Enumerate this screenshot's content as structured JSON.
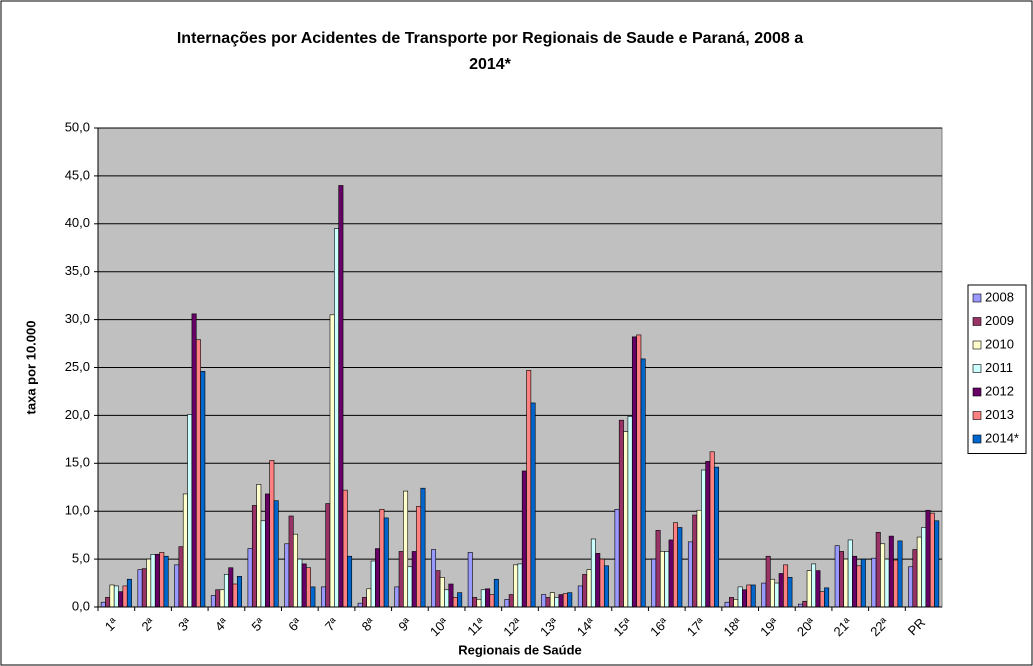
{
  "chart_data": {
    "type": "bar",
    "title": "Internações por Acidentes de Transporte por  Regionais de Saude e Paraná, 2008 a 2014*",
    "xlabel": "Regionais de Saúde",
    "ylabel": "taxa por 10.000",
    "categories": [
      "1ª",
      "2ª",
      "3ª",
      "4ª",
      "5ª",
      "6ª",
      "7ª",
      "8ª",
      "9ª",
      "10ª",
      "11ª",
      "12ª",
      "13ª",
      "14ª",
      "15ª",
      "16ª",
      "17ª",
      "18ª",
      "19ª",
      "20ª",
      "21ª",
      "22ª",
      "PR"
    ],
    "series": [
      {
        "name": "2008",
        "color": "#9999ff",
        "values": [
          0.5,
          3.9,
          4.4,
          1.2,
          6.1,
          6.6,
          2.1,
          0.4,
          2.1,
          6.0,
          5.7,
          0.8,
          1.3,
          2.2,
          10.2,
          5.0,
          6.8,
          0.5,
          2.5,
          0.3,
          6.4,
          5.1,
          4.2
        ]
      },
      {
        "name": "2009",
        "color": "#993366",
        "values": [
          1.0,
          4.0,
          6.3,
          1.8,
          10.6,
          9.5,
          10.8,
          1.0,
          5.8,
          3.8,
          1.0,
          1.3,
          1.0,
          3.4,
          19.5,
          8.0,
          9.6,
          1.0,
          5.3,
          0.6,
          5.8,
          7.8,
          6.0
        ]
      },
      {
        "name": "2010",
        "color": "#ffffcc",
        "values": [
          2.3,
          5.0,
          11.8,
          1.8,
          12.8,
          7.6,
          30.5,
          1.9,
          12.1,
          3.1,
          0.8,
          4.4,
          1.5,
          3.9,
          18.3,
          5.8,
          10.1,
          0.8,
          2.9,
          3.8,
          5.0,
          6.6,
          7.3
        ]
      },
      {
        "name": "2011",
        "color": "#ccffff",
        "values": [
          2.2,
          5.5,
          20.1,
          3.4,
          9.0,
          5.0,
          39.5,
          4.8,
          4.2,
          1.8,
          1.8,
          4.5,
          1.0,
          7.1,
          19.9,
          5.8,
          14.3,
          2.1,
          2.5,
          4.5,
          7.0,
          5.0,
          8.3
        ]
      },
      {
        "name": "2012",
        "color": "#660066",
        "values": [
          1.6,
          5.5,
          30.6,
          4.1,
          11.8,
          4.5,
          44.0,
          6.1,
          5.8,
          2.4,
          1.9,
          14.2,
          1.3,
          5.6,
          28.2,
          7.0,
          15.2,
          1.8,
          3.5,
          3.8,
          5.3,
          7.4,
          10.1
        ]
      },
      {
        "name": "2013",
        "color": "#ff8080",
        "values": [
          2.2,
          5.7,
          27.9,
          2.4,
          15.3,
          4.1,
          12.2,
          10.2,
          10.5,
          1.0,
          1.3,
          24.7,
          1.4,
          5.0,
          28.4,
          8.8,
          16.2,
          2.3,
          4.4,
          1.6,
          4.3,
          4.9,
          9.8
        ]
      },
      {
        "name": "2014*",
        "color": "#0066cc",
        "values": [
          2.9,
          5.3,
          24.6,
          3.2,
          11.1,
          2.1,
          5.3,
          9.3,
          12.4,
          1.5,
          2.9,
          21.3,
          1.5,
          4.3,
          25.9,
          8.3,
          14.6,
          2.3,
          3.1,
          2.0,
          5.0,
          6.9,
          9.0
        ]
      }
    ],
    "ylim": [
      0,
      50
    ],
    "yticks": [
      {
        "value": 0,
        "label": "0,0"
      },
      {
        "value": 5,
        "label": "5,0"
      },
      {
        "value": 10,
        "label": "10,0"
      },
      {
        "value": 15,
        "label": "15,0"
      },
      {
        "value": 20,
        "label": "20,0"
      },
      {
        "value": 25,
        "label": "25,0"
      },
      {
        "value": 30,
        "label": "30,0"
      },
      {
        "value": 35,
        "label": "35,0"
      },
      {
        "value": 40,
        "label": "40,0"
      },
      {
        "value": 45,
        "label": "45,0"
      },
      {
        "value": 50,
        "label": "50,0"
      }
    ],
    "grid": true,
    "legend": "right",
    "plot_background": "#c0c0c0"
  }
}
